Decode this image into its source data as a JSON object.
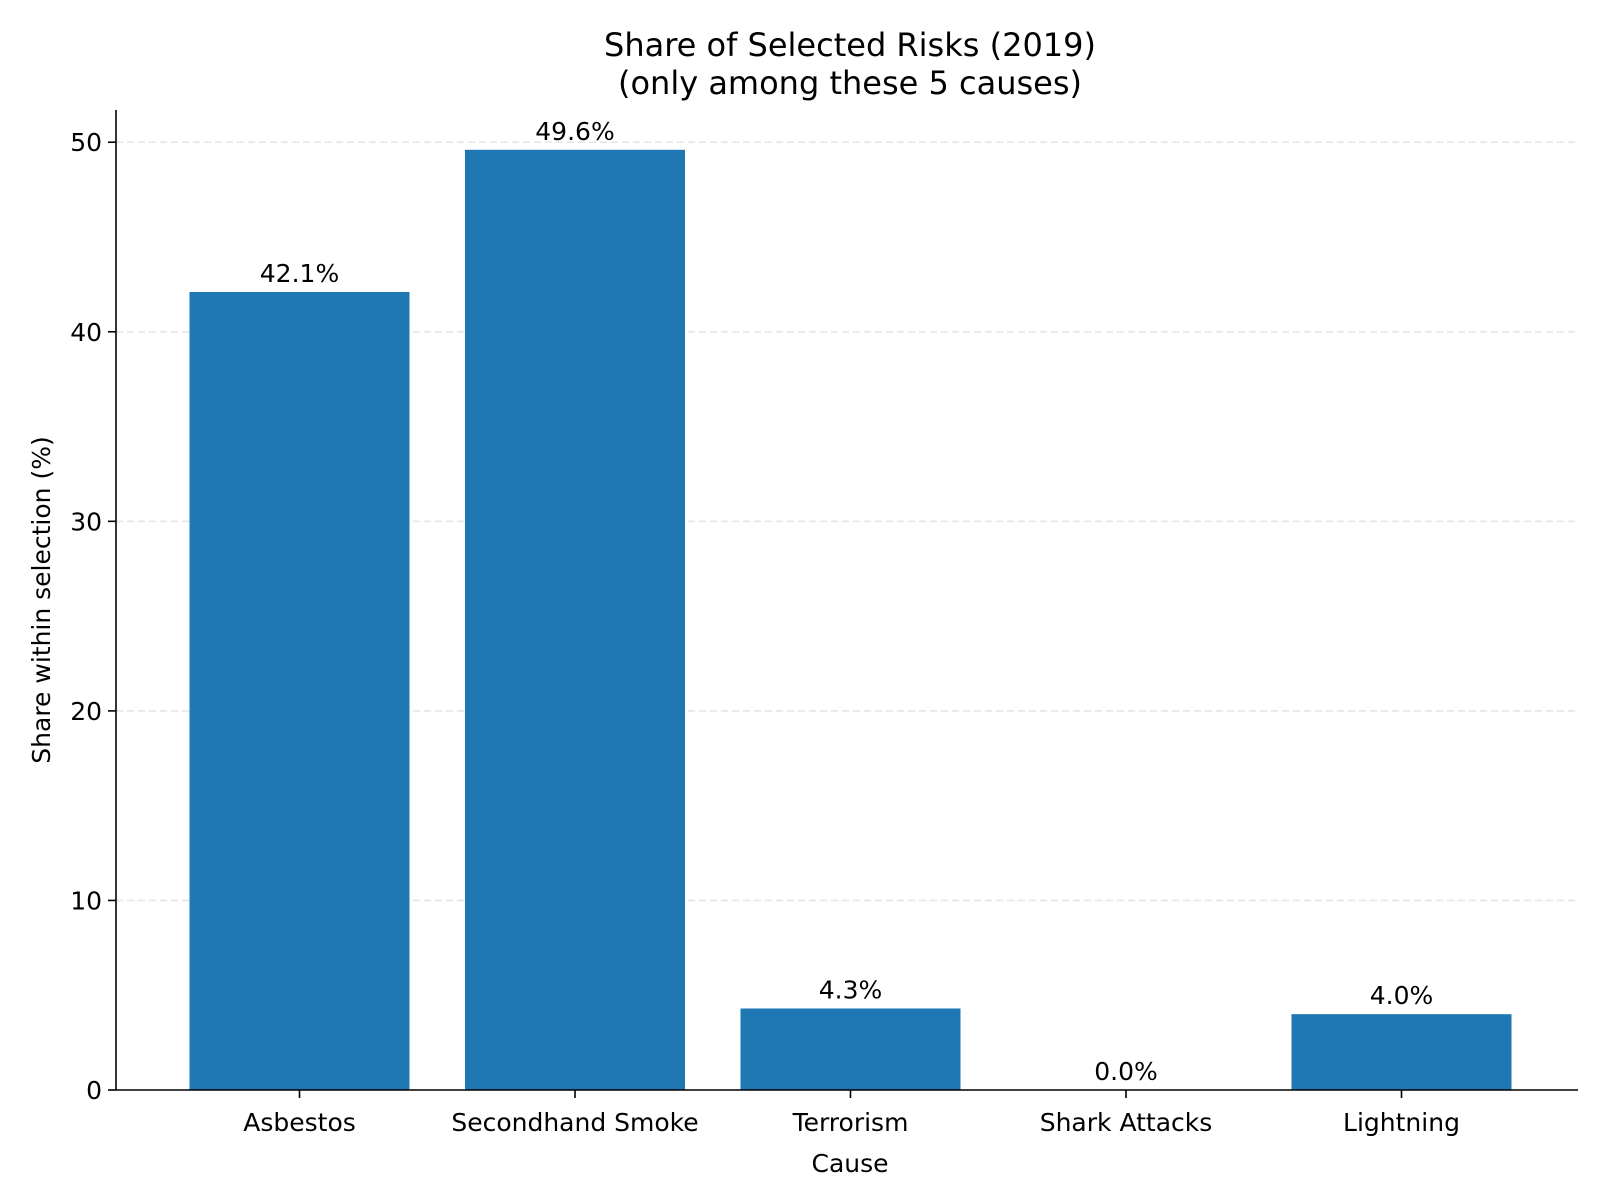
{
  "chart_data": {
    "type": "bar",
    "title": "Share of Selected Risks (2019)",
    "subtitle": "(only among these 5 causes)",
    "xlabel": "Cause",
    "ylabel": "Share within selection (%)",
    "categories": [
      "Asbestos",
      "Secondhand Smoke",
      "Terrorism",
      "Shark Attacks",
      "Lightning"
    ],
    "values": [
      42.1,
      49.6,
      4.3,
      0.0,
      4.0
    ],
    "data_labels": [
      "42.1%",
      "49.6%",
      "4.3%",
      "0.0%",
      "4.0%"
    ],
    "y_ticks": [
      0,
      10,
      20,
      30,
      40,
      50
    ],
    "ylim": [
      0,
      51.7
    ],
    "grid": "y dashed",
    "legend": "none",
    "colors": {
      "bar": "#1f77b4",
      "grid": "#e6e6e6",
      "axis": "#000000"
    }
  }
}
